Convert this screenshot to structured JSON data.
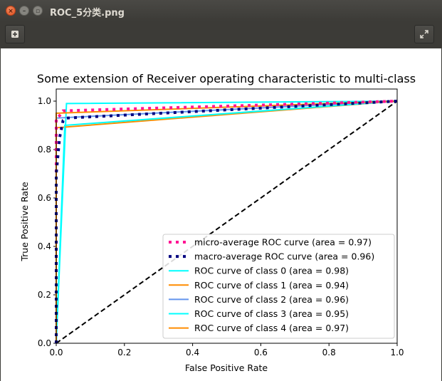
{
  "window": {
    "title": "ROC_5分类.png",
    "close_icon": "close-icon",
    "minimize_icon": "minimize-icon",
    "maximize_icon": "maximize-icon"
  },
  "toolbar": {
    "add_icon": "add-icon",
    "fullscreen_icon": "fullscreen-icon"
  },
  "chart_data": {
    "type": "line",
    "title": "Some extension of Receiver operating characteristic to multi-class",
    "xlabel": "False Positive Rate",
    "ylabel": "True Positive Rate",
    "xlim": [
      0.0,
      1.0
    ],
    "ylim": [
      0.0,
      1.05
    ],
    "xticks": [
      0.0,
      0.2,
      0.4,
      0.6,
      0.8,
      1.0
    ],
    "xtick_labels": [
      "0.0",
      "0.2",
      "0.4",
      "0.6",
      "0.8",
      "1.0"
    ],
    "yticks": [
      0.0,
      0.2,
      0.4,
      0.6,
      0.8,
      1.0
    ],
    "ytick_labels": [
      "0.0",
      "0.2",
      "0.4",
      "0.6",
      "0.8",
      "1.0"
    ],
    "grid": false,
    "legend_position": "lower right",
    "series": [
      {
        "name": "micro-average ROC curve (area = 0.97)",
        "color": "#ff1493",
        "style": "dotted",
        "x": [
          0.0,
          0.0,
          0.01,
          0.02,
          1.0
        ],
        "y": [
          0.0,
          0.93,
          0.94,
          0.96,
          1.0
        ]
      },
      {
        "name": "macro-average ROC curve (area = 0.96)",
        "color": "#000080",
        "style": "dotted",
        "x": [
          0.0,
          0.0,
          0.01,
          0.02,
          0.03,
          1.0
        ],
        "y": [
          0.0,
          0.7,
          0.85,
          0.92,
          0.93,
          1.0
        ]
      },
      {
        "name": "ROC curve of class 0 (area = 0.98)",
        "color": "#00ffff",
        "style": "solid",
        "x": [
          0.0,
          0.03,
          1.0
        ],
        "y": [
          0.0,
          0.99,
          1.0
        ]
      },
      {
        "name": "ROC curve of class 1 (area = 0.94)",
        "color": "#ff8c00",
        "style": "solid",
        "x": [
          0.0,
          0.0,
          1.0
        ],
        "y": [
          0.0,
          0.89,
          1.0
        ]
      },
      {
        "name": "ROC curve of class 2 (area = 0.96)",
        "color": "#6495ed",
        "style": "solid",
        "x": [
          0.0,
          0.0,
          1.0
        ],
        "y": [
          0.0,
          0.93,
          1.0
        ]
      },
      {
        "name": "ROC curve of class 3 (area = 0.95)",
        "color": "#00ffff",
        "style": "solid",
        "x": [
          0.0,
          0.025,
          1.0
        ],
        "y": [
          0.0,
          0.9,
          1.0
        ]
      },
      {
        "name": "ROC curve of class 4 (area = 0.97)",
        "color": "#ff8c00",
        "style": "solid",
        "x": [
          0.0,
          0.0,
          1.0
        ],
        "y": [
          0.0,
          0.95,
          1.0
        ]
      }
    ],
    "reference_line": {
      "x": [
        0.0,
        1.0
      ],
      "y": [
        0.0,
        1.0
      ],
      "color": "#000000",
      "style": "dashed"
    }
  }
}
